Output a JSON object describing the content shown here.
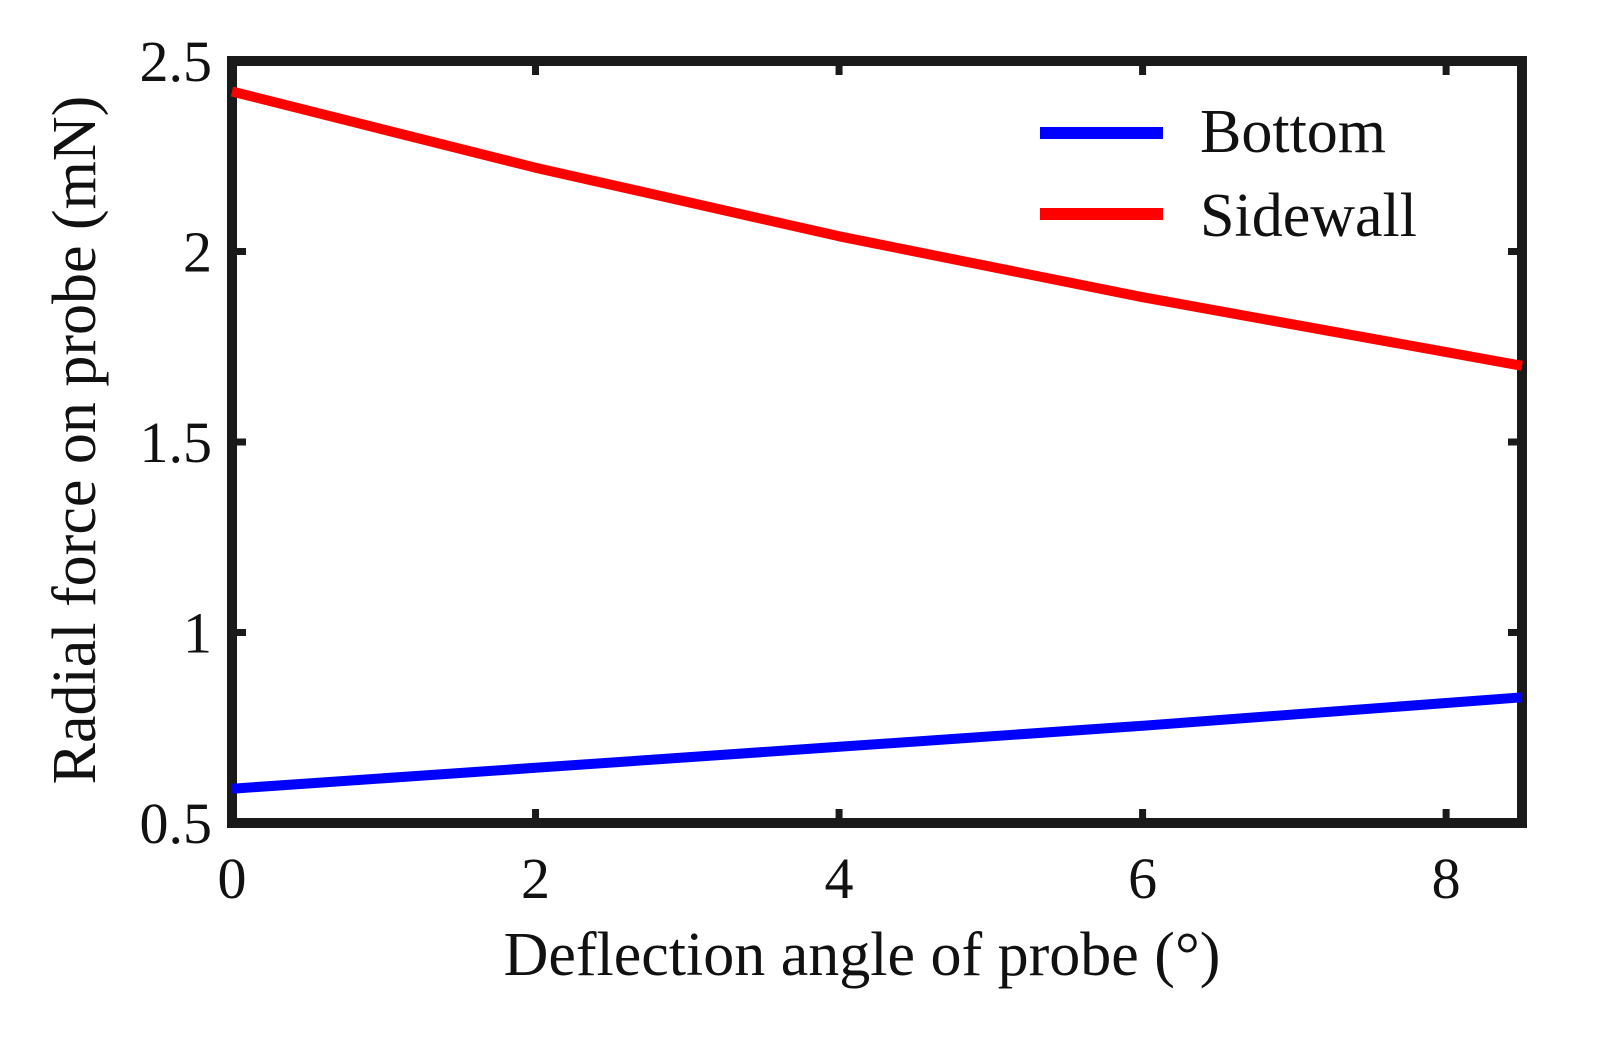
{
  "chart_data": {
    "type": "line",
    "title": "",
    "xlabel": "Deflection angle of probe (°)",
    "ylabel": "Radial force on probe (mN)",
    "xlim": [
      0,
      8.5
    ],
    "ylim": [
      0.5,
      2.5
    ],
    "xticks": [
      0,
      2,
      4,
      6,
      8
    ],
    "xtick_labels": [
      "0",
      "2",
      "4",
      "6",
      "8"
    ],
    "yticks": [
      0.5,
      1,
      1.5,
      2,
      2.5
    ],
    "ytick_labels": [
      "0.5",
      "1",
      "1.5",
      "2",
      "2.5"
    ],
    "grid": false,
    "legend_position": "top-right",
    "series": [
      {
        "name": "Bottom",
        "color": "#0000ff",
        "x": [
          0,
          2,
          4,
          6,
          8.5
        ],
        "y": [
          0.59,
          0.645,
          0.7,
          0.755,
          0.83
        ]
      },
      {
        "name": "Sidewall",
        "color": "#ff0000",
        "x": [
          0,
          2,
          4,
          6,
          8.5
        ],
        "y": [
          2.42,
          2.22,
          2.04,
          1.88,
          1.7
        ]
      }
    ]
  }
}
